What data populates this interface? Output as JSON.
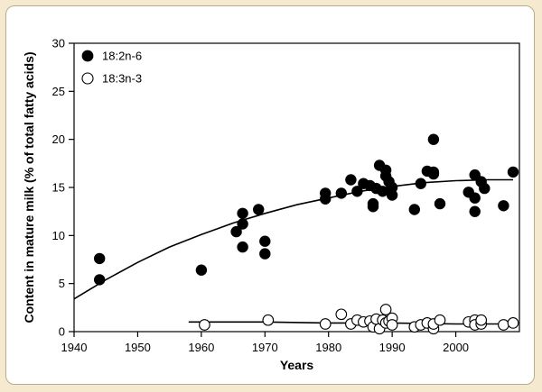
{
  "chart_data": {
    "type": "scatter",
    "title": "",
    "xlabel": "Years",
    "ylabel": "Content in mature milk (% of total fatty acids)",
    "xlim": [
      1940,
      2010
    ],
    "ylim": [
      0,
      30
    ],
    "xticks": [
      1940,
      1950,
      1960,
      1970,
      1980,
      1990,
      2000
    ],
    "yticks": [
      0,
      5,
      10,
      15,
      20,
      25,
      30
    ],
    "grid": false,
    "legend": "top-left",
    "series": [
      {
        "name": "18:2n-6",
        "marker": "filled-circle",
        "color": "#000000",
        "points": [
          [
            1944,
            7.6
          ],
          [
            1944,
            5.4
          ],
          [
            1960,
            6.4
          ],
          [
            1965.5,
            10.4
          ],
          [
            1966.5,
            11.2
          ],
          [
            1966.5,
            12.3
          ],
          [
            1966.5,
            8.8
          ],
          [
            1969,
            12.7
          ],
          [
            1970,
            9.4
          ],
          [
            1970,
            8.1
          ],
          [
            1979.5,
            13.8
          ],
          [
            1979.5,
            14.4
          ],
          [
            1982,
            14.4
          ],
          [
            1983.5,
            15.8
          ],
          [
            1984.5,
            14.6
          ],
          [
            1985.5,
            15.4
          ],
          [
            1986.5,
            15.2
          ],
          [
            1987,
            13.0
          ],
          [
            1987,
            13.3
          ],
          [
            1987.5,
            14.9
          ],
          [
            1988,
            17.3
          ],
          [
            1988.5,
            14.6
          ],
          [
            1989,
            16.2
          ],
          [
            1989,
            16.8
          ],
          [
            1989.5,
            15.6
          ],
          [
            1990,
            15.0
          ],
          [
            1990,
            14.2
          ],
          [
            1993.5,
            12.7
          ],
          [
            1994.5,
            15.4
          ],
          [
            1995.5,
            16.7
          ],
          [
            1996.5,
            16.6
          ],
          [
            1996.5,
            20.0
          ],
          [
            1996.5,
            16.4
          ],
          [
            1997.5,
            13.3
          ],
          [
            2002,
            14.5
          ],
          [
            2003,
            16.3
          ],
          [
            2003,
            13.9
          ],
          [
            2003,
            12.5
          ],
          [
            2004,
            15.6
          ],
          [
            2004.5,
            14.9
          ],
          [
            2007.5,
            13.1
          ],
          [
            2009,
            16.6
          ]
        ],
        "trend": [
          [
            1940,
            3.4
          ],
          [
            1945,
            5.4
          ],
          [
            1950,
            7.2
          ],
          [
            1955,
            8.8
          ],
          [
            1960,
            10.1
          ],
          [
            1965,
            11.3
          ],
          [
            1970,
            12.3
          ],
          [
            1975,
            13.2
          ],
          [
            1980,
            13.9
          ],
          [
            1985,
            14.6
          ],
          [
            1990,
            15.1
          ],
          [
            1995,
            15.5
          ],
          [
            2000,
            15.7
          ],
          [
            2005,
            15.8
          ],
          [
            2009,
            15.8
          ]
        ]
      },
      {
        "name": "18:3n-3",
        "marker": "open-circle",
        "color": "#000000",
        "points": [
          [
            1960.5,
            0.7
          ],
          [
            1970.5,
            1.2
          ],
          [
            1979.5,
            0.8
          ],
          [
            1982,
            1.8
          ],
          [
            1983.5,
            0.8
          ],
          [
            1984.5,
            1.2
          ],
          [
            1985.5,
            1.0
          ],
          [
            1986.5,
            1.1
          ],
          [
            1987,
            0.5
          ],
          [
            1987.5,
            1.3
          ],
          [
            1988,
            0.3
          ],
          [
            1988.5,
            1.2
          ],
          [
            1989,
            2.3
          ],
          [
            1989,
            0.9
          ],
          [
            1989.5,
            1.1
          ],
          [
            1990,
            1.4
          ],
          [
            1990,
            0.7
          ],
          [
            1993.5,
            0.5
          ],
          [
            1994.5,
            0.7
          ],
          [
            1995.5,
            0.9
          ],
          [
            1996.5,
            0.3
          ],
          [
            1996.5,
            0.8
          ],
          [
            1997.5,
            1.2
          ],
          [
            2002,
            1.0
          ],
          [
            2003,
            1.2
          ],
          [
            2003,
            0.7
          ],
          [
            2004,
            0.8
          ],
          [
            2004,
            1.2
          ],
          [
            2007.5,
            0.7
          ],
          [
            2009,
            0.9
          ]
        ],
        "trend": [
          [
            1958,
            1.0
          ],
          [
            1970,
            1.0
          ],
          [
            1980,
            0.9
          ],
          [
            1990,
            0.9
          ],
          [
            2000,
            0.8
          ],
          [
            2009,
            0.8
          ]
        ]
      }
    ]
  }
}
